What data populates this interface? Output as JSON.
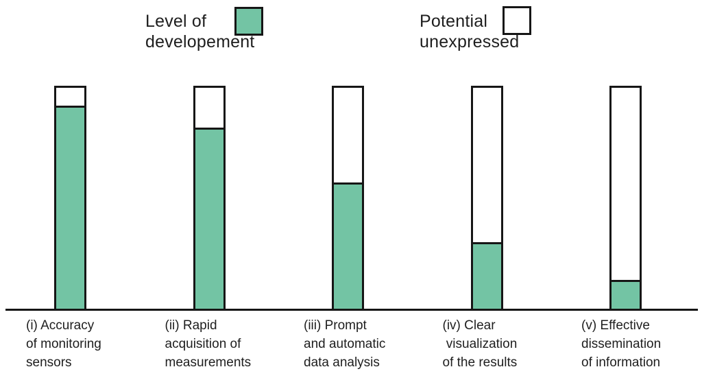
{
  "legend": {
    "items": [
      {
        "lines": [
          "Level of",
          "developement"
        ],
        "swatch_color": "#73c4a4",
        "swatch_style": "filled"
      },
      {
        "lines": [
          "Potential",
          "unexpressed"
        ],
        "swatch_color": "#ffffff",
        "swatch_style": "outlined"
      }
    ]
  },
  "colors": {
    "developed_fill": "#73c4a4",
    "unexpressed_fill": "#ffffff",
    "outline": "#161616",
    "text": "#1e1e1e"
  },
  "chart_data": {
    "type": "bar",
    "subtype": "stacked-100pct-fraction",
    "title": "",
    "xlabel": "",
    "ylabel": "",
    "ylim": [
      0,
      1
    ],
    "grid": false,
    "axis_ticks": "none (single baseline, no y-axis)",
    "legend_position": "top",
    "categories": [
      [
        "(i) Accuracy",
        "of monitoring",
        "sensors"
      ],
      [
        "(ii) Rapid",
        "acquisition of",
        "measurements"
      ],
      [
        "(iii) Prompt",
        "and automatic",
        "data analysis"
      ],
      [
        "(iv) Clear",
        " visualization",
        "of the results"
      ],
      [
        "(v) Effective",
        "dissemination",
        "of information"
      ]
    ],
    "series": [
      {
        "name": "Level of developement",
        "color": "#73c4a4",
        "values": [
          0.92,
          0.82,
          0.57,
          0.3,
          0.13
        ]
      },
      {
        "name": "Potential unexpressed",
        "color": "#ffffff",
        "values": [
          0.08,
          0.18,
          0.43,
          0.7,
          0.87
        ]
      }
    ]
  }
}
